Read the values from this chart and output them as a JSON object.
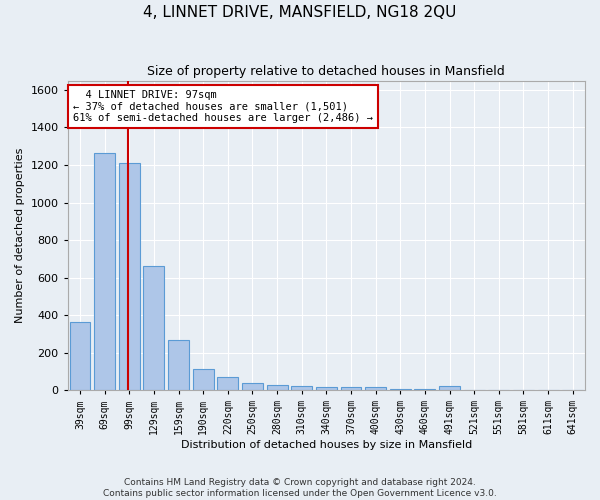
{
  "title": "4, LINNET DRIVE, MANSFIELD, NG18 2QU",
  "subtitle": "Size of property relative to detached houses in Mansfield",
  "xlabel": "Distribution of detached houses by size in Mansfield",
  "ylabel": "Number of detached properties",
  "footer_line1": "Contains HM Land Registry data © Crown copyright and database right 2024.",
  "footer_line2": "Contains public sector information licensed under the Open Government Licence v3.0.",
  "categories": [
    "39sqm",
    "69sqm",
    "99sqm",
    "129sqm",
    "159sqm",
    "190sqm",
    "220sqm",
    "250sqm",
    "280sqm",
    "310sqm",
    "340sqm",
    "370sqm",
    "400sqm",
    "430sqm",
    "460sqm",
    "491sqm",
    "521sqm",
    "551sqm",
    "581sqm",
    "611sqm",
    "641sqm"
  ],
  "values": [
    365,
    1265,
    1210,
    660,
    265,
    115,
    70,
    40,
    30,
    20,
    15,
    15,
    15,
    5,
    5,
    20,
    0,
    0,
    0,
    0,
    0
  ],
  "bar_color": "#aec6e8",
  "bar_edge_color": "#5b9bd5",
  "background_color": "#e8eef4",
  "grid_color": "#ffffff",
  "property_line_color": "#cc0000",
  "annotation_line1": "  4 LINNET DRIVE: 97sqm",
  "annotation_line2": "← 37% of detached houses are smaller (1,501)",
  "annotation_line3": "61% of semi-detached houses are larger (2,486) →",
  "annotation_box_color": "#ffffff",
  "annotation_box_edge_color": "#cc0000",
  "ylim": [
    0,
    1650
  ],
  "yticks": [
    0,
    200,
    400,
    600,
    800,
    1000,
    1200,
    1400,
    1600
  ],
  "title_fontsize": 11,
  "subtitle_fontsize": 9,
  "xlabel_fontsize": 8,
  "ylabel_fontsize": 8,
  "tick_fontsize": 8,
  "xtick_fontsize": 7,
  "footer_fontsize": 6.5,
  "annotation_fontsize": 7.5
}
